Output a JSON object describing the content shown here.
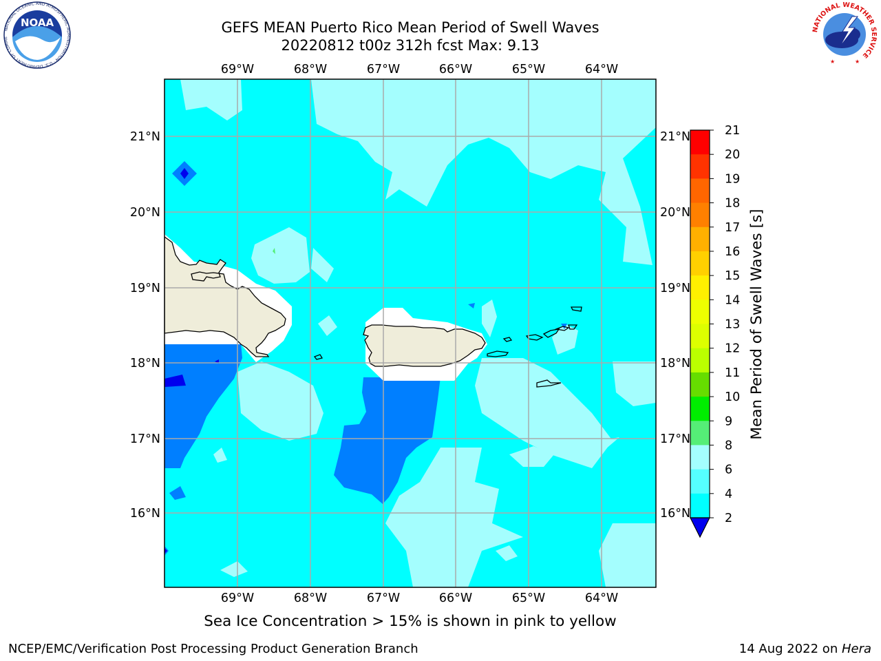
{
  "header": {
    "title_line1": "GEFS MEAN Puerto Rico Mean Period of Swell Waves",
    "title_line2": "20220812 t00z 312h fcst   Max: 9.13"
  },
  "logos": {
    "left": {
      "name": "noaa-logo",
      "text": "NOAA",
      "ring_text": "NATIONAL OCEANIC AND ATMOSPHERIC ADMINISTRATION · U.S. DEPARTMENT OF COMMERCE"
    },
    "right": {
      "name": "nws-logo",
      "ring_text": "NATIONAL WEATHER SERVICE"
    }
  },
  "map": {
    "lon_labels": [
      "69°W",
      "68°W",
      "67°W",
      "66°W",
      "65°W",
      "64°W"
    ],
    "lat_labels": [
      "21°N",
      "20°N",
      "19°N",
      "18°N",
      "17°N",
      "16°N"
    ],
    "colors": {
      "ocean_6_8": "#00ffff",
      "ocean_8_9": "#a4fefe",
      "ocean_4_6": "#007fff",
      "ocean_2_4": "#0000ee",
      "land": "#efedda",
      "mask": "#ffffff",
      "grid": "#aaaaaa"
    }
  },
  "colorbar": {
    "title": "Mean Period of Swell Waves [s]",
    "ticks": [
      "21",
      "20",
      "19",
      "18",
      "17",
      "16",
      "15",
      "14",
      "13",
      "12",
      "11",
      "10",
      "9",
      "8",
      "6",
      "4",
      "2"
    ],
    "colors": [
      "#ff0000",
      "#ff3300",
      "#ff6600",
      "#ff8000",
      "#ffb000",
      "#ffd000",
      "#fff000",
      "#eeff00",
      "#ddff00",
      "#bbff00",
      "#66dd00",
      "#00ee00",
      "#55ee77",
      "#a4fefe",
      "#55ffff",
      "#00ffff",
      "#007fff",
      "#0000ee"
    ]
  },
  "caption": "Sea Ice Concentration > 15% is shown in pink to yellow",
  "footer": {
    "left": "NCEP/EMC/Verification Post Processing Product Generation Branch",
    "right_prefix": "14 Aug 2022 on ",
    "right_machine": "Hera"
  }
}
